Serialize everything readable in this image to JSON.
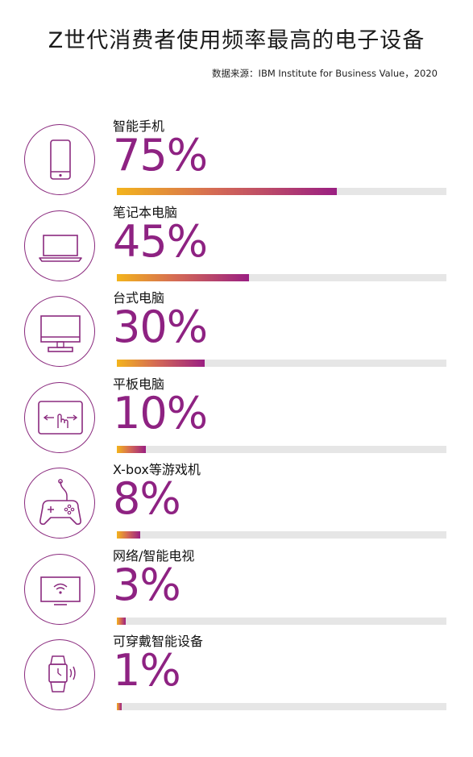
{
  "title": "Z世代消费者使用频率最高的电子设备",
  "source": "数据来源：IBM Institute for Business Value，2020",
  "colors": {
    "accent": "#8e2282",
    "gradient_start": "#f3b41c",
    "gradient_end": "#9a1f82",
    "track": "#e6e6e6"
  },
  "chart_data": {
    "type": "bar",
    "title": "Z世代消费者使用频率最高的电子设备",
    "categories": [
      "智能手机",
      "笔记本电脑",
      "台式电脑",
      "平板电脑",
      "X-box等游戏机",
      "网络/智能电视",
      "可穿戴智能设备"
    ],
    "values": [
      75,
      45,
      30,
      10,
      8,
      3,
      1
    ],
    "labels": [
      "75%",
      "45%",
      "30%",
      "10%",
      "8%",
      "3%",
      "1%"
    ],
    "icons": [
      "smartphone-icon",
      "laptop-icon",
      "desktop-icon",
      "tablet-icon",
      "gamepad-icon",
      "smart-tv-icon",
      "smartwatch-icon"
    ],
    "ylim": [
      0,
      100
    ],
    "orientation": "horizontal"
  }
}
